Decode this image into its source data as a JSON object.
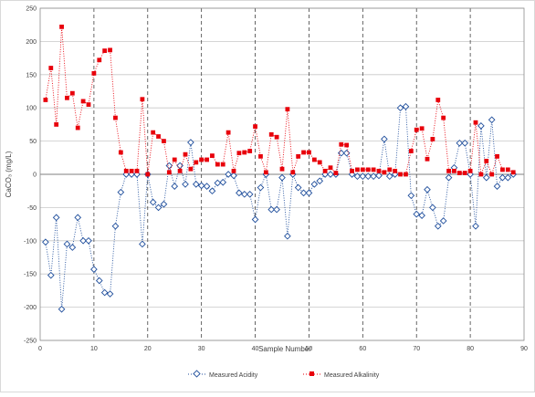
{
  "chart_data": {
    "type": "line",
    "title": "",
    "xlabel": "Sample Number",
    "ylabel": "CaCO₃ (mg/L)",
    "xlim": [
      0,
      90
    ],
    "ylim": [
      -250,
      250
    ],
    "xticks": [
      "0",
      "10",
      "20",
      "30",
      "40",
      "50",
      "60",
      "70",
      "80",
      "90"
    ],
    "yticks": [
      "-250",
      "-200",
      "-150",
      "-100",
      "-50",
      "0",
      "50",
      "100",
      "150",
      "200",
      "250"
    ],
    "grid": {
      "horizontal": "solid",
      "vertical": "dashed",
      "zero_line": true
    },
    "legend_position": "bottom",
    "series": [
      {
        "name": "Measured Acidity",
        "color": "#1f4e9c",
        "marker": "diamond-open",
        "line": "dotted",
        "points": [
          [
            1,
            -102
          ],
          [
            2,
            -152
          ],
          [
            3,
            -65
          ],
          [
            4,
            -203
          ],
          [
            5,
            -105
          ],
          [
            6,
            -110
          ],
          [
            7,
            -65
          ],
          [
            8,
            -100
          ],
          [
            9,
            -100
          ],
          [
            10,
            -143
          ],
          [
            11,
            -160
          ],
          [
            12,
            -178
          ],
          [
            13,
            -180
          ],
          [
            14,
            -78
          ],
          [
            15,
            -27
          ],
          [
            16,
            0
          ],
          [
            17,
            0
          ],
          [
            18,
            0
          ],
          [
            19,
            -105
          ],
          [
            20,
            0
          ],
          [
            21,
            -42
          ],
          [
            22,
            -50
          ],
          [
            23,
            -45
          ],
          [
            24,
            13
          ],
          [
            25,
            -18
          ],
          [
            26,
            13
          ],
          [
            27,
            -15
          ],
          [
            28,
            48
          ],
          [
            29,
            -15
          ],
          [
            30,
            -17
          ],
          [
            31,
            -18
          ],
          [
            32,
            -25
          ],
          [
            33,
            -13
          ],
          [
            34,
            -12
          ],
          [
            35,
            0
          ],
          [
            36,
            -2
          ],
          [
            37,
            -28
          ],
          [
            38,
            -30
          ],
          [
            39,
            -30
          ],
          [
            40,
            -68
          ],
          [
            41,
            -20
          ],
          [
            42,
            0
          ],
          [
            43,
            -53
          ],
          [
            44,
            -53
          ],
          [
            45,
            -5
          ],
          [
            46,
            -93
          ],
          [
            47,
            0
          ],
          [
            48,
            -20
          ],
          [
            49,
            -28
          ],
          [
            50,
            -28
          ],
          [
            51,
            -15
          ],
          [
            52,
            -10
          ],
          [
            53,
            0
          ],
          [
            54,
            0
          ],
          [
            55,
            0
          ],
          [
            56,
            32
          ],
          [
            57,
            32
          ],
          [
            58,
            0
          ],
          [
            59,
            -3
          ],
          [
            60,
            -3
          ],
          [
            61,
            -3
          ],
          [
            62,
            -3
          ],
          [
            63,
            -2
          ],
          [
            64,
            53
          ],
          [
            65,
            -3
          ],
          [
            66,
            0
          ],
          [
            67,
            100
          ],
          [
            68,
            102
          ],
          [
            69,
            -32
          ],
          [
            70,
            -60
          ],
          [
            71,
            -62
          ],
          [
            72,
            -23
          ],
          [
            73,
            -50
          ],
          [
            74,
            -78
          ],
          [
            75,
            -70
          ],
          [
            76,
            -5
          ],
          [
            77,
            10
          ],
          [
            78,
            47
          ],
          [
            79,
            47
          ],
          [
            80,
            0
          ],
          [
            81,
            -78
          ],
          [
            82,
            73
          ],
          [
            83,
            -5
          ],
          [
            84,
            82
          ],
          [
            85,
            -18
          ],
          [
            86,
            -5
          ],
          [
            87,
            -5
          ],
          [
            88,
            0
          ]
        ]
      },
      {
        "name": "Measured Alkalinity",
        "color": "#e8000b",
        "marker": "square-filled",
        "line": "dotted",
        "points": [
          [
            1,
            112
          ],
          [
            2,
            160
          ],
          [
            3,
            75
          ],
          [
            4,
            222
          ],
          [
            5,
            115
          ],
          [
            6,
            122
          ],
          [
            7,
            70
          ],
          [
            8,
            110
          ],
          [
            9,
            105
          ],
          [
            10,
            152
          ],
          [
            11,
            172
          ],
          [
            12,
            186
          ],
          [
            13,
            187
          ],
          [
            14,
            85
          ],
          [
            15,
            33
          ],
          [
            16,
            5
          ],
          [
            17,
            5
          ],
          [
            18,
            5
          ],
          [
            19,
            113
          ],
          [
            20,
            0
          ],
          [
            21,
            63
          ],
          [
            22,
            57
          ],
          [
            23,
            50
          ],
          [
            24,
            3
          ],
          [
            25,
            22
          ],
          [
            26,
            5
          ],
          [
            27,
            30
          ],
          [
            28,
            8
          ],
          [
            29,
            18
          ],
          [
            30,
            22
          ],
          [
            31,
            22
          ],
          [
            32,
            28
          ],
          [
            33,
            15
          ],
          [
            34,
            15
          ],
          [
            35,
            63
          ],
          [
            36,
            5
          ],
          [
            37,
            32
          ],
          [
            38,
            33
          ],
          [
            39,
            35
          ],
          [
            40,
            72
          ],
          [
            41,
            27
          ],
          [
            42,
            3
          ],
          [
            43,
            60
          ],
          [
            44,
            56
          ],
          [
            45,
            8
          ],
          [
            46,
            98
          ],
          [
            47,
            3
          ],
          [
            48,
            27
          ],
          [
            49,
            33
          ],
          [
            50,
            33
          ],
          [
            51,
            22
          ],
          [
            52,
            18
          ],
          [
            53,
            5
          ],
          [
            54,
            10
          ],
          [
            55,
            2
          ],
          [
            56,
            45
          ],
          [
            57,
            44
          ],
          [
            58,
            5
          ],
          [
            59,
            7
          ],
          [
            60,
            7
          ],
          [
            61,
            7
          ],
          [
            62,
            7
          ],
          [
            63,
            5
          ],
          [
            64,
            3
          ],
          [
            65,
            7
          ],
          [
            66,
            5
          ],
          [
            67,
            0
          ],
          [
            68,
            0
          ],
          [
            69,
            35
          ],
          [
            70,
            67
          ],
          [
            71,
            69
          ],
          [
            72,
            23
          ],
          [
            73,
            53
          ],
          [
            74,
            112
          ],
          [
            75,
            85
          ],
          [
            76,
            5
          ],
          [
            77,
            5
          ],
          [
            78,
            2
          ],
          [
            79,
            2
          ],
          [
            80,
            5
          ],
          [
            81,
            78
          ],
          [
            82,
            0
          ],
          [
            83,
            20
          ],
          [
            84,
            0
          ],
          [
            85,
            27
          ],
          [
            86,
            7
          ],
          [
            87,
            7
          ],
          [
            88,
            3
          ]
        ]
      }
    ]
  }
}
